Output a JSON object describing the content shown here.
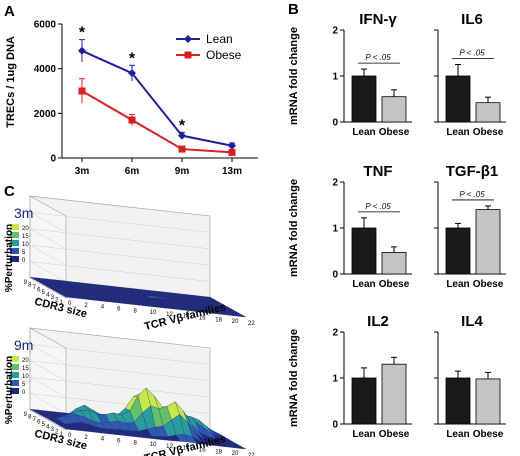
{
  "panels": {
    "a": "A",
    "b": "B",
    "c": "C"
  },
  "chart_data": [
    {
      "type": "line",
      "panel": "A",
      "ylabel": "TRECs / 1ug DNA",
      "x": [
        "3m",
        "6m",
        "9m",
        "13m"
      ],
      "ylim": [
        0,
        6000
      ],
      "yticks": [
        0,
        2000,
        4000,
        6000
      ],
      "legend_position": "top-right",
      "significance": [
        "*",
        "*",
        "*",
        ""
      ],
      "series": [
        {
          "name": "Lean",
          "values": [
            4800,
            3800,
            1000,
            550
          ],
          "err": [
            500,
            350,
            150,
            120
          ],
          "color": "#1f1fa0"
        },
        {
          "name": "Obese",
          "values": [
            3000,
            1700,
            400,
            250
          ],
          "err": [
            550,
            250,
            120,
            100
          ],
          "color": "#d62020"
        }
      ]
    },
    {
      "type": "bar",
      "panel": "B",
      "ylabel": "mRNA fold change",
      "categories": [
        "Lean",
        "Obese"
      ],
      "ylim": [
        0,
        2
      ],
      "yticks": [
        0,
        1,
        2
      ],
      "colors": [
        "#1a1a1a",
        "#c4c4c4"
      ],
      "subplots": [
        {
          "title": "IFN-γ",
          "values": [
            1.0,
            0.55
          ],
          "err": [
            0.15,
            0.15
          ],
          "pval": "P < .05"
        },
        {
          "title": "IL6",
          "values": [
            1.0,
            0.42
          ],
          "err": [
            0.25,
            0.12
          ],
          "pval": "P < .05"
        },
        {
          "title": "TNF",
          "values": [
            1.0,
            0.47
          ],
          "err": [
            0.22,
            0.12
          ],
          "pval": "P < .05"
        },
        {
          "title": "TGF-β1",
          "values": [
            1.0,
            1.4
          ],
          "err": [
            0.1,
            0.08
          ],
          "pval": "P < .05"
        },
        {
          "title": "IL2",
          "values": [
            1.0,
            1.3
          ],
          "err": [
            0.22,
            0.15
          ],
          "pval": ""
        },
        {
          "title": "IL4",
          "values": [
            1.0,
            0.98
          ],
          "err": [
            0.15,
            0.14
          ],
          "pval": ""
        }
      ]
    },
    {
      "type": "surface",
      "panel": "C",
      "zlabel": "%Perturbation",
      "xlabel": "CDR3 size",
      "ylabel": "TCR Vβ families",
      "colorbar_ticks": [
        20,
        15,
        10,
        5,
        0
      ],
      "colorbar_colors": [
        "#c6e84a",
        "#62c06a",
        "#2a9c9c",
        "#2f59b0",
        "#1f2a7c"
      ],
      "cdr3_ticks": [
        9,
        8,
        7,
        6,
        5,
        4,
        3,
        2,
        1
      ],
      "tcr_ticks": [
        0,
        2,
        4,
        6,
        8,
        10,
        12,
        14,
        16,
        18,
        20,
        22
      ],
      "subplots": [
        {
          "title": "3m"
        },
        {
          "title": "9m"
        }
      ]
    }
  ]
}
